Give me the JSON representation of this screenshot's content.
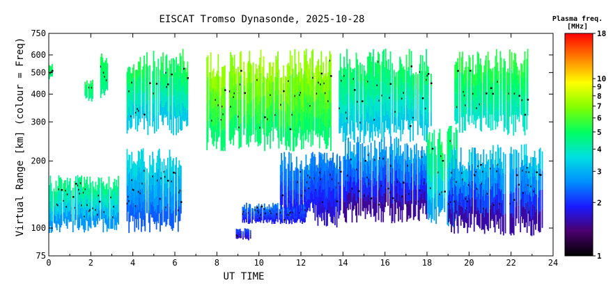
{
  "chart_data": {
    "type": "heatmap",
    "title": "EISCAT Tromso Dynasonde, 2025-10-28",
    "xlabel": "UT TIME",
    "ylabel": "Virtual Range [km] (colour = Freq)",
    "xlim": [
      0,
      24
    ],
    "ylim": [
      75,
      750
    ],
    "y_scale": "log",
    "grid": false,
    "x_ticks": [
      0,
      2,
      4,
      6,
      8,
      10,
      12,
      14,
      16,
      18,
      20,
      22,
      24
    ],
    "y_ticks": [
      75,
      100,
      200,
      300,
      400,
      500,
      600,
      750
    ],
    "colorbar": {
      "title_line1": "Plasma freq.",
      "title_line2": "[MHz]",
      "range": [
        1,
        18
      ],
      "scale": "log",
      "ticks": [
        1,
        2,
        3,
        4,
        5,
        6,
        7,
        8,
        9,
        10,
        18
      ],
      "colors": [
        "#000000",
        "#4b006e",
        "#1a1aff",
        "#0090ff",
        "#00e0e0",
        "#00ff60",
        "#80ff00",
        "#ffff00",
        "#ff8000",
        "#ff0000"
      ]
    },
    "regions": [
      {
        "layer": "F",
        "t0": 0.0,
        "t1": 0.15,
        "h0": 460,
        "h1": 560,
        "f0": 4.6,
        "f1": 5.2
      },
      {
        "layer": "F",
        "t0": 1.7,
        "t1": 2.1,
        "h0": 370,
        "h1": 470,
        "f0": 4.4,
        "f1": 5.2
      },
      {
        "layer": "F",
        "t0": 2.4,
        "t1": 2.8,
        "h0": 380,
        "h1": 610,
        "f0": 4.4,
        "f1": 5.2
      },
      {
        "layer": "F",
        "t0": 3.7,
        "t1": 6.6,
        "h0": 260,
        "h1": 640,
        "f0": 3.0,
        "f1": 5.4
      },
      {
        "layer": "F",
        "t0": 7.5,
        "t1": 13.4,
        "h0": 220,
        "h1": 640,
        "f0": 4.4,
        "f1": 7.6
      },
      {
        "layer": "F",
        "t0": 13.8,
        "t1": 18.2,
        "h0": 240,
        "h1": 640,
        "f0": 3.0,
        "f1": 5.2
      },
      {
        "layer": "F",
        "t0": 19.3,
        "t1": 22.8,
        "h0": 260,
        "h1": 640,
        "f0": 3.6,
        "f1": 5.6
      },
      {
        "layer": "E",
        "t0": 0.0,
        "t1": 3.3,
        "h0": 95,
        "h1": 175,
        "f0": 2.4,
        "f1": 4.8
      },
      {
        "layer": "E",
        "t0": 3.7,
        "t1": 6.3,
        "h0": 95,
        "h1": 230,
        "f0": 2.1,
        "f1": 3.6
      },
      {
        "layer": "E",
        "t0": 8.9,
        "t1": 9.6,
        "h0": 88,
        "h1": 100,
        "f0": 1.6,
        "f1": 2.2
      },
      {
        "layer": "E",
        "t0": 9.2,
        "t1": 12.2,
        "h0": 104,
        "h1": 130,
        "f0": 1.8,
        "f1": 2.5
      },
      {
        "layer": "E",
        "t0": 11.0,
        "t1": 13.7,
        "h0": 110,
        "h1": 220,
        "f0": 1.8,
        "f1": 2.7
      },
      {
        "layer": "E",
        "t0": 12.6,
        "t1": 13.9,
        "h0": 100,
        "h1": 220,
        "f0": 1.6,
        "f1": 2.5
      },
      {
        "layer": "E",
        "t0": 14.0,
        "t1": 18.0,
        "h0": 105,
        "h1": 260,
        "f0": 1.3,
        "f1": 3.0
      },
      {
        "layer": "E",
        "t0": 18.0,
        "t1": 19.4,
        "h0": 100,
        "h1": 290,
        "f0": 2.5,
        "f1": 5.2
      },
      {
        "layer": "E",
        "t0": 19.0,
        "t1": 23.5,
        "h0": 92,
        "h1": 240,
        "f0": 1.3,
        "f1": 3.4
      }
    ]
  }
}
